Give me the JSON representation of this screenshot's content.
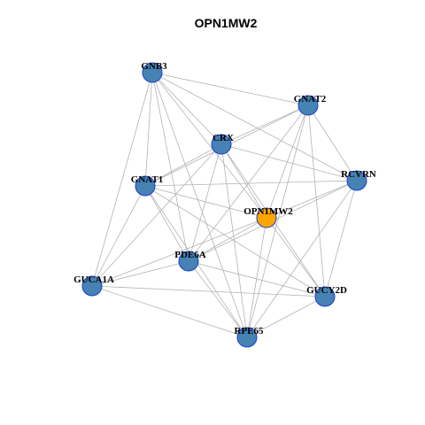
{
  "title": "OPN1MW2",
  "nodes": [
    {
      "label": "GNB3"
    },
    {
      "label": "GNAT2"
    },
    {
      "label": "CRX"
    },
    {
      "label": "GNAT1"
    },
    {
      "label": "RCVRN"
    },
    {
      "label": "OPN1MW2"
    },
    {
      "label": "PDE6A"
    },
    {
      "label": "GUCA1A"
    },
    {
      "label": "GUCY2D"
    },
    {
      "label": "RPE65"
    }
  ]
}
